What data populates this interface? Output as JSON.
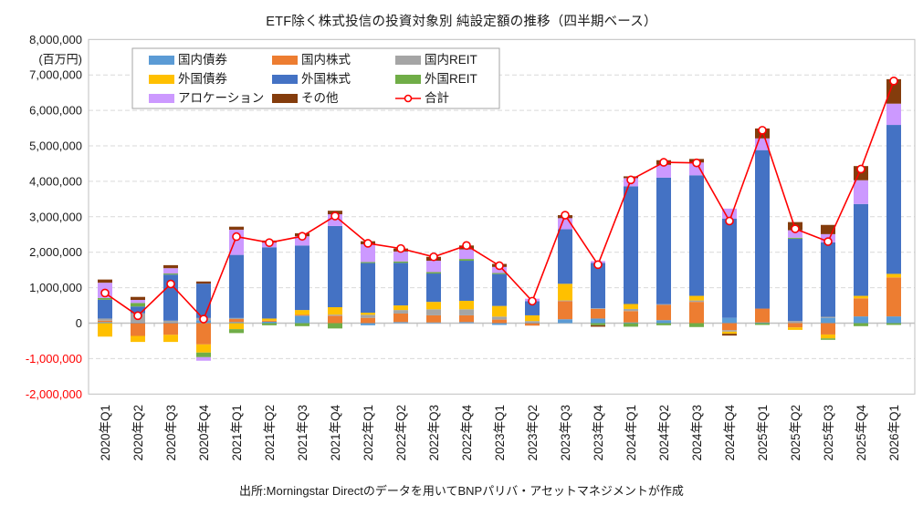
{
  "title": "ETF除く株式投信の投資対象別 純設定額の推移（四半期ベース）",
  "footer": "出所:Morningstar Directのデータを用いてBNPパリバ・アセットマネジメントが作成",
  "colors": {
    "axis": "#bfbfbf",
    "grid": "#d9d9d9",
    "zero_line": "#c0c0c0",
    "negative_tick_label": "#ff0000",
    "tick_label": "#1a1a1a",
    "legend_border": "#a6a6a6"
  },
  "chart_data": {
    "type": "bar",
    "subtype": "stacked-bars-with-total-line",
    "title": "ETF除く株式投信の投資対象別 純設定額の推移（四半期ベース）",
    "unit_label": "(百万円)",
    "ylim": [
      -2000000,
      8000000
    ],
    "ytick_interval": 1000000,
    "grid": "dashed-horizontal",
    "legend_position": "top-left",
    "categories": [
      "2020年Q1",
      "2020年Q2",
      "2020年Q3",
      "2020年Q4",
      "2021年Q1",
      "2021年Q2",
      "2021年Q3",
      "2021年Q4",
      "2022年Q1",
      "2022年Q2",
      "2022年Q3",
      "2022年Q4",
      "2023年Q1",
      "2023年Q2",
      "2023年Q3",
      "2023年Q4",
      "2024年Q1",
      "2024年Q2",
      "2024年Q3",
      "2024年Q4",
      "2025年Q1",
      "2025年Q2",
      "2025年Q3",
      "2025年Q4",
      "2026年Q1"
    ],
    "series": [
      {
        "name": "国内債券",
        "color": "#5b9bd5",
        "values": [
          30000,
          20000,
          20000,
          85000,
          30000,
          40000,
          210000,
          0,
          -60000,
          30000,
          20000,
          30000,
          -50000,
          20000,
          110000,
          130000,
          20000,
          85000,
          0,
          150000,
          20000,
          0,
          150000,
          190000,
          190000
        ]
      },
      {
        "name": "国内株式",
        "color": "#ed7d31",
        "values": [
          40000,
          -360000,
          -330000,
          -600000,
          85000,
          30000,
          30000,
          210000,
          150000,
          240000,
          200000,
          190000,
          100000,
          -70000,
          510000,
          270000,
          320000,
          430000,
          600000,
          -200000,
          390000,
          -120000,
          -320000,
          510000,
          1100000
        ]
      },
      {
        "name": "国内REIT",
        "color": "#a5a5a5",
        "values": [
          60000,
          260000,
          50000,
          60000,
          30000,
          0,
          0,
          30000,
          85000,
          100000,
          170000,
          170000,
          85000,
          40000,
          20000,
          20000,
          60000,
          20000,
          40000,
          -40000,
          0,
          60000,
          30000,
          0,
          0
        ]
      },
      {
        "name": "外国債券",
        "color": "#ffc000",
        "values": [
          -380000,
          -170000,
          -200000,
          -230000,
          -170000,
          60000,
          130000,
          210000,
          60000,
          130000,
          210000,
          240000,
          300000,
          160000,
          470000,
          0,
          140000,
          0,
          130000,
          -60000,
          0,
          -70000,
          -110000,
          70000,
          100000
        ]
      },
      {
        "name": "外国株式",
        "color": "#4472c4",
        "values": [
          530000,
          190000,
          1300000,
          970000,
          1780000,
          2010000,
          1820000,
          2290000,
          1400000,
          1200000,
          800000,
          1130000,
          900000,
          400000,
          1540000,
          1280000,
          3320000,
          3570000,
          3400000,
          2800000,
          4470000,
          2320000,
          2100000,
          2590000,
          4200000
        ]
      },
      {
        "name": "外国REIT",
        "color": "#70ad47",
        "values": [
          50000,
          100000,
          30000,
          -130000,
          -110000,
          -60000,
          -85000,
          -150000,
          30000,
          40000,
          40000,
          50000,
          30000,
          0,
          0,
          -60000,
          -100000,
          -60000,
          -110000,
          0,
          -50000,
          30000,
          -40000,
          -85000,
          -50000
        ]
      },
      {
        "name": "アロケーション",
        "color": "#cc99ff",
        "values": [
          430000,
          85000,
          150000,
          -100000,
          710000,
          130000,
          260000,
          330000,
          500000,
          280000,
          320000,
          270000,
          170000,
          70000,
          310000,
          50000,
          230000,
          360000,
          360000,
          280000,
          330000,
          210000,
          230000,
          670000,
          600000
        ]
      },
      {
        "name": "その他",
        "color": "#843c0c",
        "values": [
          90000,
          85000,
          85000,
          60000,
          85000,
          60000,
          85000,
          100000,
          85000,
          85000,
          110000,
          110000,
          85000,
          0,
          85000,
          -40000,
          50000,
          130000,
          100000,
          -50000,
          280000,
          230000,
          260000,
          400000,
          690000
        ]
      }
    ],
    "line_series": {
      "name": "合計",
      "color": "#ff0000",
      "values": [
        850000,
        210000,
        1105000,
        115000,
        2440000,
        2270000,
        2450000,
        3020000,
        2250000,
        2105000,
        1870000,
        2190000,
        1620000,
        620000,
        3045000,
        1650000,
        4040000,
        4535000,
        4520000,
        2880000,
        5440000,
        2660000,
        2300000,
        4345000,
        6830000
      ]
    }
  }
}
